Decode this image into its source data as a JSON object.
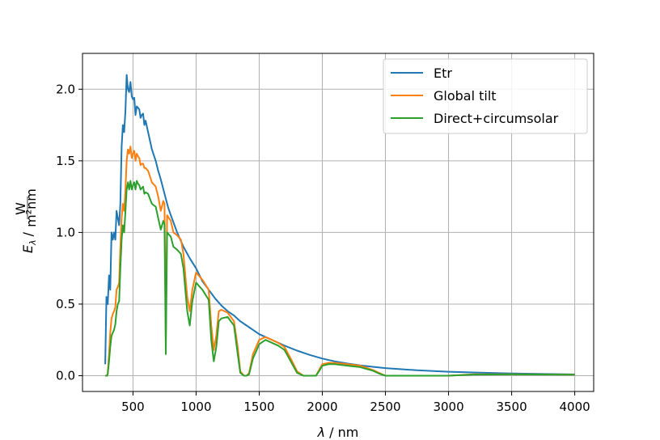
{
  "chart_data": {
    "type": "line",
    "xlabel_var": "λ",
    "xlabel_unit": "/ nm",
    "ylabel_var": "E",
    "ylabel_sub": "λ",
    "ylabel_sep": "/",
    "ylabel_unit_num": "W",
    "ylabel_unit_den": "m²nm",
    "xlim": [
      100,
      4150
    ],
    "ylim": [
      -0.11,
      2.25
    ],
    "xticks": [
      500,
      1000,
      1500,
      2000,
      2500,
      3000,
      3500,
      4000
    ],
    "xtick_labels": [
      "500",
      "1000",
      "1500",
      "2000",
      "2500",
      "3000",
      "3500",
      "4000"
    ],
    "yticks": [
      0.0,
      0.5,
      1.0,
      1.5,
      2.0
    ],
    "ytick_labels": [
      "0.0",
      "0.5",
      "1.0",
      "1.5",
      "2.0"
    ],
    "grid": true,
    "legend_position": "top-right",
    "series": [
      {
        "name": "Etr",
        "color": "#1f77b4",
        "points": [
          [
            280,
            0.08
          ],
          [
            290,
            0.55
          ],
          [
            300,
            0.5
          ],
          [
            310,
            0.7
          ],
          [
            320,
            0.6
          ],
          [
            330,
            1.0
          ],
          [
            340,
            0.95
          ],
          [
            350,
            1.0
          ],
          [
            360,
            0.95
          ],
          [
            370,
            1.15
          ],
          [
            380,
            1.1
          ],
          [
            390,
            1.05
          ],
          [
            400,
            1.2
          ],
          [
            410,
            1.6
          ],
          [
            420,
            1.75
          ],
          [
            430,
            1.7
          ],
          [
            440,
            1.85
          ],
          [
            450,
            2.1
          ],
          [
            460,
            2.0
          ],
          [
            470,
            1.98
          ],
          [
            480,
            2.05
          ],
          [
            490,
            1.95
          ],
          [
            500,
            1.93
          ],
          [
            510,
            1.94
          ],
          [
            520,
            1.82
          ],
          [
            530,
            1.88
          ],
          [
            540,
            1.87
          ],
          [
            550,
            1.86
          ],
          [
            560,
            1.8
          ],
          [
            570,
            1.82
          ],
          [
            580,
            1.83
          ],
          [
            590,
            1.75
          ],
          [
            600,
            1.78
          ],
          [
            620,
            1.7
          ],
          [
            650,
            1.58
          ],
          [
            680,
            1.5
          ],
          [
            700,
            1.43
          ],
          [
            720,
            1.37
          ],
          [
            750,
            1.27
          ],
          [
            780,
            1.17
          ],
          [
            800,
            1.12
          ],
          [
            850,
            1.0
          ],
          [
            900,
            0.9
          ],
          [
            950,
            0.82
          ],
          [
            1000,
            0.75
          ],
          [
            1050,
            0.66
          ],
          [
            1100,
            0.6
          ],
          [
            1150,
            0.54
          ],
          [
            1200,
            0.49
          ],
          [
            1250,
            0.45
          ],
          [
            1300,
            0.42
          ],
          [
            1350,
            0.38
          ],
          [
            1400,
            0.35
          ],
          [
            1450,
            0.32
          ],
          [
            1500,
            0.29
          ],
          [
            1600,
            0.25
          ],
          [
            1700,
            0.21
          ],
          [
            1800,
            0.175
          ],
          [
            1900,
            0.145
          ],
          [
            2000,
            0.12
          ],
          [
            2100,
            0.1
          ],
          [
            2200,
            0.085
          ],
          [
            2300,
            0.072
          ],
          [
            2400,
            0.062
          ],
          [
            2500,
            0.053
          ],
          [
            2750,
            0.038
          ],
          [
            3000,
            0.028
          ],
          [
            3250,
            0.021
          ],
          [
            3500,
            0.016
          ],
          [
            3750,
            0.012
          ],
          [
            4000,
            0.009
          ]
        ]
      },
      {
        "name": "Global tilt",
        "color": "#ff7f0e",
        "points": [
          [
            280,
            0.0
          ],
          [
            295,
            0.0
          ],
          [
            300,
            0.02
          ],
          [
            310,
            0.15
          ],
          [
            320,
            0.3
          ],
          [
            330,
            0.4
          ],
          [
            340,
            0.43
          ],
          [
            350,
            0.45
          ],
          [
            360,
            0.48
          ],
          [
            370,
            0.6
          ],
          [
            380,
            0.62
          ],
          [
            390,
            0.65
          ],
          [
            400,
            0.9
          ],
          [
            410,
            1.1
          ],
          [
            420,
            1.2
          ],
          [
            430,
            1.15
          ],
          [
            440,
            1.3
          ],
          [
            450,
            1.5
          ],
          [
            460,
            1.58
          ],
          [
            470,
            1.55
          ],
          [
            480,
            1.6
          ],
          [
            490,
            1.52
          ],
          [
            500,
            1.55
          ],
          [
            510,
            1.57
          ],
          [
            520,
            1.5
          ],
          [
            530,
            1.55
          ],
          [
            540,
            1.53
          ],
          [
            550,
            1.52
          ],
          [
            560,
            1.47
          ],
          [
            570,
            1.48
          ],
          [
            580,
            1.48
          ],
          [
            590,
            1.45
          ],
          [
            600,
            1.45
          ],
          [
            620,
            1.43
          ],
          [
            650,
            1.35
          ],
          [
            680,
            1.32
          ],
          [
            700,
            1.25
          ],
          [
            720,
            1.15
          ],
          [
            740,
            1.22
          ],
          [
            750,
            1.2
          ],
          [
            760,
            0.25
          ],
          [
            770,
            1.12
          ],
          [
            800,
            1.08
          ],
          [
            820,
            1.0
          ],
          [
            850,
            0.98
          ],
          [
            880,
            0.95
          ],
          [
            900,
            0.85
          ],
          [
            930,
            0.55
          ],
          [
            950,
            0.45
          ],
          [
            970,
            0.6
          ],
          [
            1000,
            0.72
          ],
          [
            1050,
            0.67
          ],
          [
            1100,
            0.6
          ],
          [
            1120,
            0.35
          ],
          [
            1140,
            0.18
          ],
          [
            1160,
            0.28
          ],
          [
            1180,
            0.45
          ],
          [
            1200,
            0.46
          ],
          [
            1250,
            0.44
          ],
          [
            1300,
            0.38
          ],
          [
            1330,
            0.2
          ],
          [
            1350,
            0.03
          ],
          [
            1380,
            0.0
          ],
          [
            1400,
            0.0
          ],
          [
            1420,
            0.02
          ],
          [
            1450,
            0.15
          ],
          [
            1500,
            0.25
          ],
          [
            1550,
            0.27
          ],
          [
            1600,
            0.25
          ],
          [
            1650,
            0.23
          ],
          [
            1700,
            0.2
          ],
          [
            1750,
            0.12
          ],
          [
            1800,
            0.03
          ],
          [
            1850,
            0.0
          ],
          [
            1950,
            0.0
          ],
          [
            1980,
            0.05
          ],
          [
            2000,
            0.08
          ],
          [
            2050,
            0.09
          ],
          [
            2100,
            0.09
          ],
          [
            2200,
            0.08
          ],
          [
            2300,
            0.07
          ],
          [
            2400,
            0.04
          ],
          [
            2450,
            0.02
          ],
          [
            2500,
            0.0
          ],
          [
            3000,
            0.0
          ],
          [
            3200,
            0.01
          ],
          [
            3500,
            0.01
          ],
          [
            4000,
            0.008
          ]
        ]
      },
      {
        "name": "Direct+circumsolar",
        "color": "#2ca02c",
        "points": [
          [
            280,
            0.0
          ],
          [
            295,
            0.0
          ],
          [
            300,
            0.01
          ],
          [
            310,
            0.1
          ],
          [
            320,
            0.2
          ],
          [
            330,
            0.28
          ],
          [
            340,
            0.3
          ],
          [
            350,
            0.32
          ],
          [
            360,
            0.36
          ],
          [
            370,
            0.45
          ],
          [
            380,
            0.5
          ],
          [
            390,
            0.52
          ],
          [
            400,
            0.75
          ],
          [
            410,
            0.95
          ],
          [
            420,
            1.05
          ],
          [
            430,
            1.0
          ],
          [
            440,
            1.15
          ],
          [
            450,
            1.3
          ],
          [
            460,
            1.35
          ],
          [
            470,
            1.3
          ],
          [
            480,
            1.36
          ],
          [
            490,
            1.3
          ],
          [
            500,
            1.33
          ],
          [
            510,
            1.35
          ],
          [
            520,
            1.3
          ],
          [
            530,
            1.36
          ],
          [
            540,
            1.34
          ],
          [
            550,
            1.33
          ],
          [
            560,
            1.3
          ],
          [
            570,
            1.31
          ],
          [
            580,
            1.32
          ],
          [
            590,
            1.27
          ],
          [
            600,
            1.28
          ],
          [
            620,
            1.27
          ],
          [
            650,
            1.2
          ],
          [
            680,
            1.18
          ],
          [
            700,
            1.1
          ],
          [
            720,
            1.02
          ],
          [
            740,
            1.08
          ],
          [
            750,
            1.06
          ],
          [
            760,
            0.15
          ],
          [
            770,
            1.0
          ],
          [
            800,
            0.97
          ],
          [
            820,
            0.9
          ],
          [
            850,
            0.88
          ],
          [
            880,
            0.85
          ],
          [
            900,
            0.75
          ],
          [
            930,
            0.45
          ],
          [
            950,
            0.35
          ],
          [
            970,
            0.52
          ],
          [
            1000,
            0.65
          ],
          [
            1050,
            0.6
          ],
          [
            1100,
            0.53
          ],
          [
            1120,
            0.25
          ],
          [
            1140,
            0.1
          ],
          [
            1160,
            0.2
          ],
          [
            1180,
            0.38
          ],
          [
            1200,
            0.4
          ],
          [
            1250,
            0.41
          ],
          [
            1300,
            0.35
          ],
          [
            1330,
            0.15
          ],
          [
            1350,
            0.02
          ],
          [
            1380,
            0.0
          ],
          [
            1400,
            0.0
          ],
          [
            1420,
            0.01
          ],
          [
            1450,
            0.12
          ],
          [
            1500,
            0.22
          ],
          [
            1550,
            0.25
          ],
          [
            1600,
            0.23
          ],
          [
            1650,
            0.21
          ],
          [
            1700,
            0.18
          ],
          [
            1750,
            0.1
          ],
          [
            1800,
            0.02
          ],
          [
            1850,
            0.0
          ],
          [
            1950,
            0.0
          ],
          [
            1980,
            0.04
          ],
          [
            2000,
            0.07
          ],
          [
            2050,
            0.08
          ],
          [
            2100,
            0.08
          ],
          [
            2200,
            0.07
          ],
          [
            2300,
            0.06
          ],
          [
            2400,
            0.035
          ],
          [
            2450,
            0.015
          ],
          [
            2500,
            0.0
          ],
          [
            3000,
            0.0
          ],
          [
            3200,
            0.008
          ],
          [
            3500,
            0.009
          ],
          [
            4000,
            0.007
          ]
        ]
      }
    ]
  }
}
